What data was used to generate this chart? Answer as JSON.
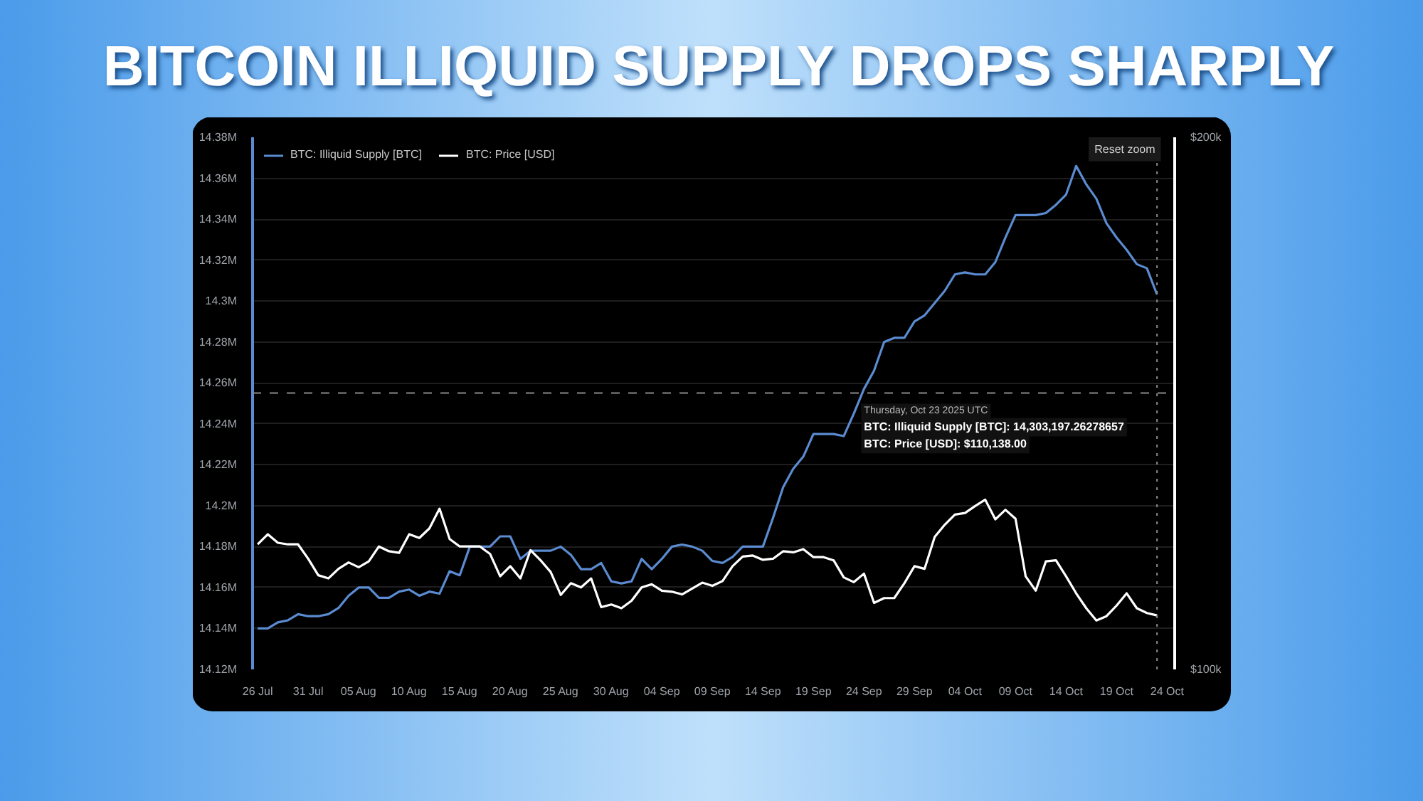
{
  "chart_data": {
    "type": "line",
    "title": "BITCOIN ILLIQUID SUPPLY DROPS SHARPLY",
    "x": [
      "2025-07-26",
      "2025-07-27",
      "2025-07-28",
      "2025-07-29",
      "2025-07-30",
      "2025-07-31",
      "2025-08-01",
      "2025-08-02",
      "2025-08-03",
      "2025-08-04",
      "2025-08-05",
      "2025-08-06",
      "2025-08-07",
      "2025-08-08",
      "2025-08-09",
      "2025-08-10",
      "2025-08-11",
      "2025-08-12",
      "2025-08-13",
      "2025-08-14",
      "2025-08-15",
      "2025-08-16",
      "2025-08-17",
      "2025-08-18",
      "2025-08-19",
      "2025-08-20",
      "2025-08-21",
      "2025-08-22",
      "2025-08-23",
      "2025-08-24",
      "2025-08-25",
      "2025-08-26",
      "2025-08-27",
      "2025-08-28",
      "2025-08-29",
      "2025-08-30",
      "2025-08-31",
      "2025-09-01",
      "2025-09-02",
      "2025-09-03",
      "2025-09-04",
      "2025-09-05",
      "2025-09-06",
      "2025-09-07",
      "2025-09-08",
      "2025-09-09",
      "2025-09-10",
      "2025-09-11",
      "2025-09-12",
      "2025-09-13",
      "2025-09-14",
      "2025-09-15",
      "2025-09-16",
      "2025-09-17",
      "2025-09-18",
      "2025-09-19",
      "2025-09-20",
      "2025-09-21",
      "2025-09-22",
      "2025-09-23",
      "2025-09-24",
      "2025-09-25",
      "2025-09-26",
      "2025-09-27",
      "2025-09-28",
      "2025-09-29",
      "2025-09-30",
      "2025-10-01",
      "2025-10-02",
      "2025-10-03",
      "2025-10-04",
      "2025-10-05",
      "2025-10-06",
      "2025-10-07",
      "2025-10-08",
      "2025-10-09",
      "2025-10-10",
      "2025-10-11",
      "2025-10-12",
      "2025-10-13",
      "2025-10-14",
      "2025-10-15",
      "2025-10-16",
      "2025-10-17",
      "2025-10-18",
      "2025-10-19",
      "2025-10-20",
      "2025-10-21",
      "2025-10-22",
      "2025-10-23"
    ],
    "series": [
      {
        "name": "BTC: Illiquid Supply [BTC]",
        "color": "#5b8bd0",
        "values": [
          14140000,
          14140000,
          14143000,
          14144000,
          14147000,
          14146000,
          14146000,
          14147000,
          14150000,
          14156000,
          14160000,
          14160000,
          14155000,
          14155000,
          14158000,
          14159000,
          14156000,
          14158000,
          14157000,
          14168000,
          14166000,
          14180000,
          14180000,
          14180000,
          14185000,
          14185000,
          14174000,
          14178000,
          14178000,
          14178000,
          14180000,
          14176000,
          14169000,
          14169000,
          14172000,
          14163000,
          14162000,
          14163000,
          14174000,
          14169000,
          14174000,
          14180000,
          14181000,
          14180000,
          14178000,
          14173000,
          14172000,
          14175000,
          14180000,
          14180000,
          14180000,
          14194000,
          14209000,
          14218000,
          14224000,
          14235000,
          14235000,
          14235000,
          14234000,
          14245000,
          14257000,
          14266000,
          14280000,
          14282000,
          14282000,
          14290000,
          14293000,
          14299000,
          14305000,
          14313000,
          14314000,
          14313000,
          14313000,
          14319000,
          14331000,
          14342000,
          14342000,
          14342000,
          14343000,
          14347000,
          14352000,
          14366000,
          14357000,
          14350000,
          14338000,
          14331000,
          14325000,
          14318000,
          14316000,
          14303197
        ]
      },
      {
        "name": "BTC: Price [USD]",
        "color": "#ffffff",
        "axis": "y2",
        "values": [
          123500,
          125400,
          123800,
          123500,
          123500,
          120800,
          117700,
          117100,
          118900,
          120100,
          119200,
          120300,
          123100,
          122200,
          121900,
          125400,
          124700,
          126500,
          130200,
          124500,
          123100,
          123100,
          123100,
          121700,
          117500,
          119400,
          117100,
          122400,
          120500,
          118300,
          114000,
          116200,
          115400,
          117100,
          111700,
          112200,
          111500,
          112900,
          115400,
          116000,
          114800,
          114600,
          114100,
          115200,
          116300,
          115700,
          116600,
          119400,
          121200,
          121400,
          120600,
          120800,
          122200,
          122000,
          122600,
          121100,
          121100,
          120500,
          117300,
          116400,
          118000,
          112500,
          113400,
          113400,
          116200,
          119400,
          118900,
          124900,
          127200,
          129100,
          129400,
          130700,
          131900,
          128200,
          130000,
          128300,
          117500,
          114800,
          120300,
          120500,
          117500,
          114300,
          111500,
          109200,
          110000,
          112000,
          114300,
          111500,
          110600,
          110138
        ]
      }
    ],
    "xlim": [
      "2025-07-25T12:00",
      "2025-10-24T18:00"
    ],
    "xticks": [
      {
        "value": "2025-07-26",
        "label": "26 Jul"
      },
      {
        "value": "2025-07-31",
        "label": "31 Jul"
      },
      {
        "value": "2025-08-05",
        "label": "05 Aug"
      },
      {
        "value": "2025-08-10",
        "label": "10 Aug"
      },
      {
        "value": "2025-08-15",
        "label": "15 Aug"
      },
      {
        "value": "2025-08-20",
        "label": "20 Aug"
      },
      {
        "value": "2025-08-25",
        "label": "25 Aug"
      },
      {
        "value": "2025-08-30",
        "label": "30 Aug"
      },
      {
        "value": "2025-09-04",
        "label": "04 Sep"
      },
      {
        "value": "2025-09-09",
        "label": "09 Sep"
      },
      {
        "value": "2025-09-14",
        "label": "14 Sep"
      },
      {
        "value": "2025-09-19",
        "label": "19 Sep"
      },
      {
        "value": "2025-09-24",
        "label": "24 Sep"
      },
      {
        "value": "2025-09-29",
        "label": "29 Sep"
      },
      {
        "value": "2025-10-04",
        "label": "04 Oct"
      },
      {
        "value": "2025-10-09",
        "label": "09 Oct"
      },
      {
        "value": "2025-10-14",
        "label": "14 Oct"
      },
      {
        "value": "2025-10-19",
        "label": "19 Oct"
      },
      {
        "value": "2025-10-24",
        "label": "24 Oct"
      }
    ],
    "ylim": [
      14120000,
      14380000
    ],
    "yticks": [
      {
        "value": 14120000,
        "label": "14.12M"
      },
      {
        "value": 14140000,
        "label": "14.14M"
      },
      {
        "value": 14160000,
        "label": "14.16M"
      },
      {
        "value": 14180000,
        "label": "14.18M"
      },
      {
        "value": 14200000,
        "label": "14.2M"
      },
      {
        "value": 14220000,
        "label": "14.22M"
      },
      {
        "value": 14240000,
        "label": "14.24M"
      },
      {
        "value": 14260000,
        "label": "14.26M"
      },
      {
        "value": 14280000,
        "label": "14.28M"
      },
      {
        "value": 14300000,
        "label": "14.3M"
      },
      {
        "value": 14320000,
        "label": "14.32M"
      },
      {
        "value": 14340000,
        "label": "14.34M"
      },
      {
        "value": 14360000,
        "label": "14.36M"
      },
      {
        "value": 14380000,
        "label": "14.38M"
      }
    ],
    "y2lim": [
      100000,
      200000
    ],
    "y2ticks": [
      {
        "value": 100000,
        "label": "$100k"
      },
      {
        "value": 200000,
        "label": "$200k"
      }
    ],
    "ref_lines": [
      {
        "axis": "y",
        "value": 14255000,
        "color": "#8a8a8a",
        "line_style": "dashed"
      },
      {
        "axis": "x",
        "value": "2025-10-23",
        "color": "#8a8a8a",
        "line_style": "dotted"
      }
    ],
    "annotations": [
      "Reset zoom",
      "Thursday, Oct 23 2025 UTC",
      "BTC: Illiquid Supply [BTC]: 14,303,197.26278657",
      "BTC: Price [USD]: $110,138.00"
    ],
    "grid": "y",
    "legend": "top left",
    "marker": "none",
    "line_style": "solid"
  }
}
